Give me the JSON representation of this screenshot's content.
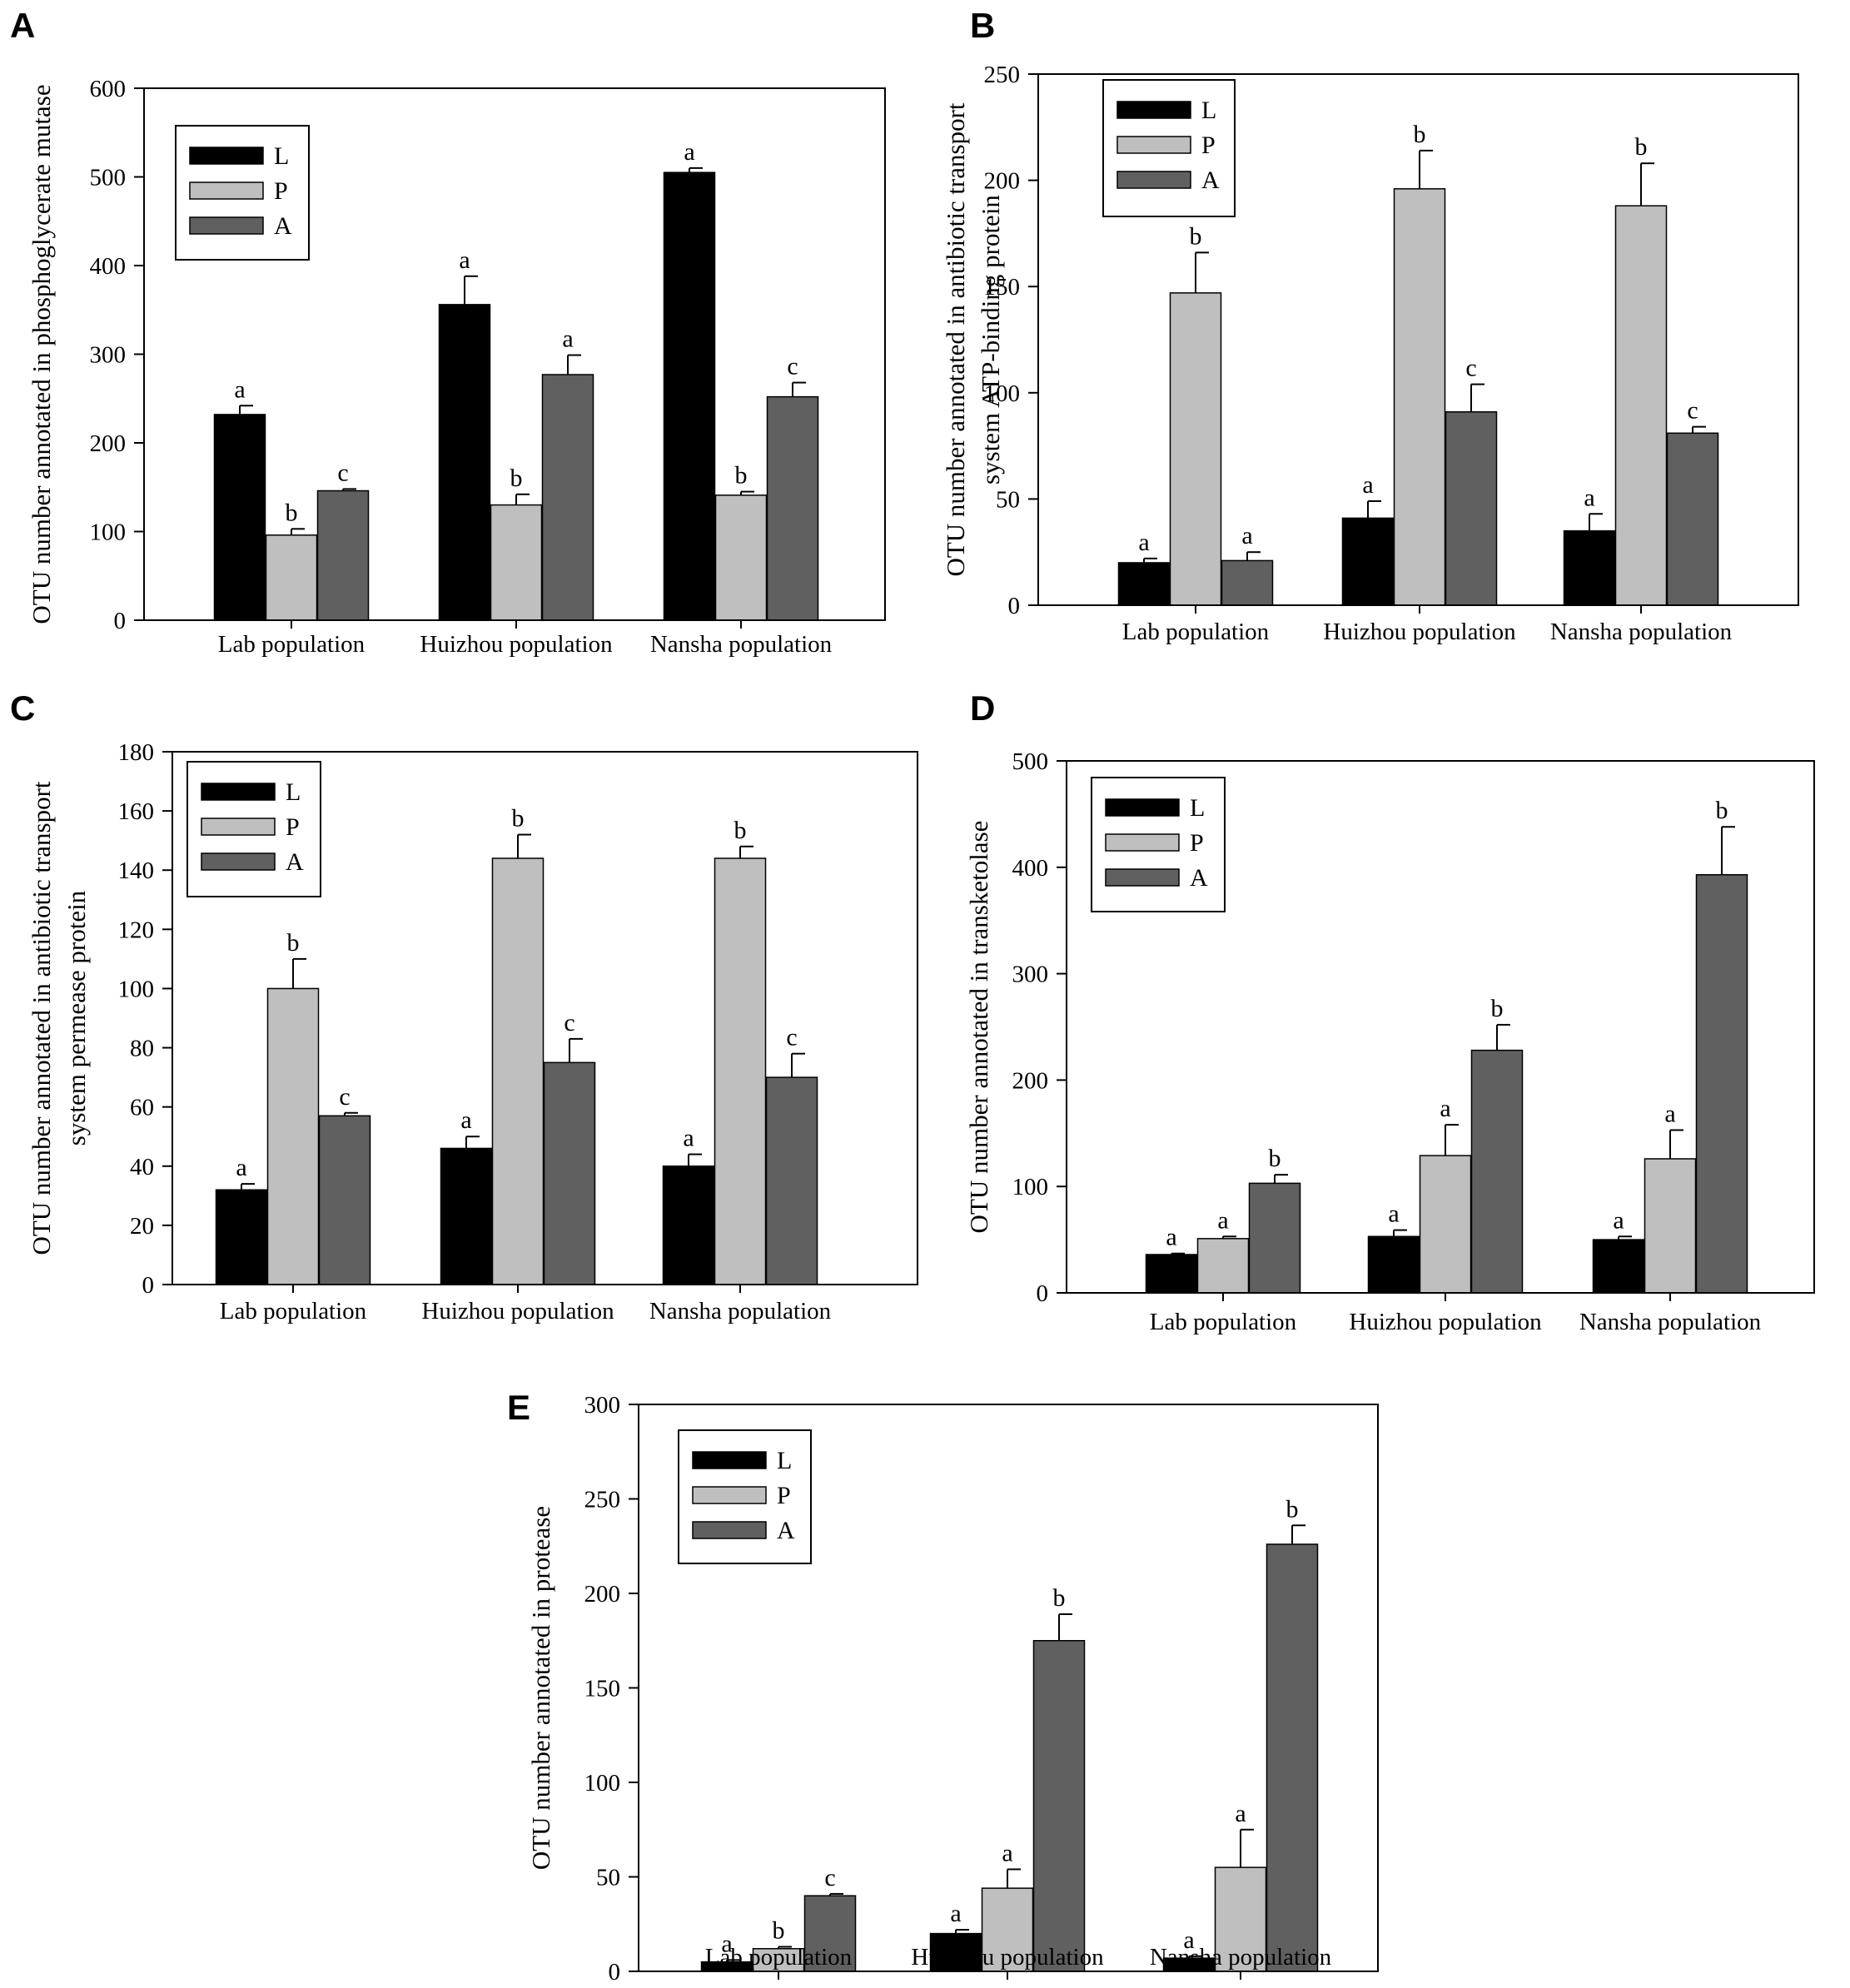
{
  "colors": {
    "L": "#000000",
    "P": "#bfbfbf",
    "A": "#606060",
    "axis": "#000000"
  },
  "chart_data": [
    {
      "panel": "A",
      "type": "bar",
      "ylabel": "OTU number annotated in phosphoglycerate mutase",
      "ylim": [
        0,
        600
      ],
      "yticks": [
        0,
        100,
        200,
        300,
        400,
        500,
        600
      ],
      "categories": [
        "Lab population",
        "Huizhou population",
        "Nansha population"
      ],
      "legend_position": "top-left",
      "series": [
        {
          "name": "L",
          "values": [
            232,
            356,
            505
          ],
          "errors": [
            10,
            32,
            5
          ],
          "letters": [
            "a",
            "a",
            "a"
          ]
        },
        {
          "name": "P",
          "values": [
            96,
            130,
            141
          ],
          "errors": [
            7,
            12,
            4
          ],
          "letters": [
            "b",
            "b",
            "b"
          ]
        },
        {
          "name": "A",
          "values": [
            146,
            277,
            252
          ],
          "errors": [
            2,
            22,
            16
          ],
          "letters": [
            "c",
            "a",
            "c"
          ]
        }
      ]
    },
    {
      "panel": "B",
      "type": "bar",
      "ylabel": "OTU number annotated in antibiotic transport system ATP-binding protein",
      "ylim": [
        0,
        250
      ],
      "yticks": [
        0,
        50,
        100,
        150,
        200,
        250
      ],
      "categories": [
        "Lab population",
        "Huizhou population",
        "Nansha population"
      ],
      "legend_position": "top-left",
      "series": [
        {
          "name": "L",
          "values": [
            20,
            41,
            35
          ],
          "errors": [
            2,
            8,
            8
          ],
          "letters": [
            "a",
            "a",
            "a"
          ]
        },
        {
          "name": "P",
          "values": [
            147,
            196,
            188
          ],
          "errors": [
            19,
            18,
            20
          ],
          "letters": [
            "b",
            "b",
            "b"
          ]
        },
        {
          "name": "A",
          "values": [
            21,
            91,
            81
          ],
          "errors": [
            4,
            13,
            3
          ],
          "letters": [
            "a",
            "c",
            "c"
          ]
        }
      ]
    },
    {
      "panel": "C",
      "type": "bar",
      "ylabel": "OTU number annotated in antibiotic transport system permease protein",
      "ylim": [
        0,
        180
      ],
      "yticks": [
        0,
        20,
        40,
        60,
        80,
        100,
        120,
        140,
        160,
        180
      ],
      "categories": [
        "Lab population",
        "Huizhou population",
        "Nansha population"
      ],
      "legend_position": "top-left",
      "series": [
        {
          "name": "L",
          "values": [
            32,
            46,
            40
          ],
          "errors": [
            2,
            4,
            4
          ],
          "letters": [
            "a",
            "a",
            "a"
          ]
        },
        {
          "name": "P",
          "values": [
            100,
            144,
            144
          ],
          "errors": [
            10,
            8,
            4
          ],
          "letters": [
            "b",
            "b",
            "b"
          ]
        },
        {
          "name": "A",
          "values": [
            57,
            75,
            70
          ],
          "errors": [
            1,
            8,
            8
          ],
          "letters": [
            "c",
            "c",
            "c"
          ]
        }
      ]
    },
    {
      "panel": "D",
      "type": "bar",
      "ylabel": "OTU number annotated in transketolase",
      "ylim": [
        0,
        500
      ],
      "yticks": [
        0,
        100,
        200,
        300,
        400,
        500
      ],
      "categories": [
        "Lab population",
        "Huizhou population",
        "Nansha population"
      ],
      "legend_position": "top-left",
      "series": [
        {
          "name": "L",
          "values": [
            36,
            53,
            50
          ],
          "errors": [
            1,
            6,
            3
          ],
          "letters": [
            "a",
            "a",
            "a"
          ]
        },
        {
          "name": "P",
          "values": [
            51,
            129,
            126
          ],
          "errors": [
            2,
            29,
            27
          ],
          "letters": [
            "a",
            "a",
            "a"
          ]
        },
        {
          "name": "A",
          "values": [
            103,
            228,
            393
          ],
          "errors": [
            8,
            24,
            45
          ],
          "letters": [
            "b",
            "b",
            "b"
          ]
        }
      ]
    },
    {
      "panel": "E",
      "type": "bar",
      "ylabel": "OTU number annotated in protease",
      "ylim": [
        0,
        300
      ],
      "yticks": [
        0,
        50,
        100,
        150,
        200,
        250,
        300
      ],
      "categories": [
        "Lab population",
        "Huizhou population",
        "Nansha population"
      ],
      "legend_position": "top-left",
      "series": [
        {
          "name": "L",
          "values": [
            5,
            20,
            7
          ],
          "errors": [
            1,
            2,
            1
          ],
          "letters": [
            "a",
            "a",
            "a"
          ]
        },
        {
          "name": "P",
          "values": [
            12,
            44,
            55
          ],
          "errors": [
            1,
            10,
            20
          ],
          "letters": [
            "b",
            "a",
            "a"
          ]
        },
        {
          "name": "A",
          "values": [
            40,
            175,
            226
          ],
          "errors": [
            1,
            14,
            10
          ],
          "letters": [
            "c",
            "b",
            "b"
          ]
        }
      ]
    }
  ]
}
